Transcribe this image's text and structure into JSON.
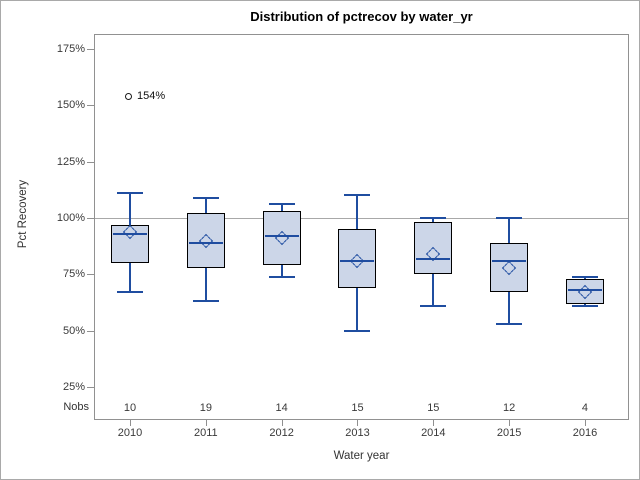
{
  "window_title": "Distribution of pctrecov by water_yr",
  "chart_data": {
    "type": "box",
    "title": "Distribution of pctrecov by water_yr",
    "xlabel": "Water year",
    "ylabel": "Pct Recovery",
    "nobs_label": "Nobs",
    "categories": [
      "2010",
      "2011",
      "2012",
      "2013",
      "2014",
      "2015",
      "2016"
    ],
    "nobs": [
      10,
      19,
      14,
      15,
      15,
      12,
      4
    ],
    "y_ticks": [
      {
        "value": 175,
        "label": "175%"
      },
      {
        "value": 150,
        "label": "150%"
      },
      {
        "value": 125,
        "label": "125%"
      },
      {
        "value": 100,
        "label": "100%"
      },
      {
        "value": 75,
        "label": "75%"
      },
      {
        "value": 50,
        "label": "50%"
      },
      {
        "value": 25,
        "label": "25%"
      }
    ],
    "ylim": [
      10.5,
      181.5
    ],
    "reference_line": 100,
    "grid": "off",
    "legend": "none",
    "boxes": [
      {
        "category": "2010",
        "low": 67,
        "q1": 80,
        "median": 93,
        "q3": 97,
        "high": 111,
        "mean": 94,
        "outliers": [
          {
            "value": 154,
            "label": "154%"
          }
        ]
      },
      {
        "category": "2011",
        "low": 63,
        "q1": 78,
        "median": 89,
        "q3": 102,
        "high": 109,
        "mean": 90,
        "outliers": []
      },
      {
        "category": "2012",
        "low": 74,
        "q1": 79,
        "median": 92,
        "q3": 103,
        "high": 106,
        "mean": 91,
        "outliers": []
      },
      {
        "category": "2013",
        "low": 50,
        "q1": 69,
        "median": 81,
        "q3": 95,
        "high": 110,
        "mean": 81,
        "outliers": []
      },
      {
        "category": "2014",
        "low": 61,
        "q1": 75,
        "median": 82,
        "q3": 98,
        "high": 100,
        "mean": 84,
        "outliers": []
      },
      {
        "category": "2015",
        "low": 53,
        "q1": 67,
        "median": 81,
        "q3": 89,
        "high": 100,
        "mean": 78,
        "outliers": []
      },
      {
        "category": "2016",
        "low": 61,
        "q1": 62,
        "median": 68,
        "q3": 73,
        "high": 74,
        "mean": 67,
        "outliers": []
      }
    ],
    "colors": {
      "box_fill": "#ccd6e8",
      "box_border": "#000000",
      "line_blue": "#1f4da0",
      "frame_gray": "#919191",
      "reference_gray": "#a8a8a8",
      "text": "#3a3a3a"
    }
  }
}
